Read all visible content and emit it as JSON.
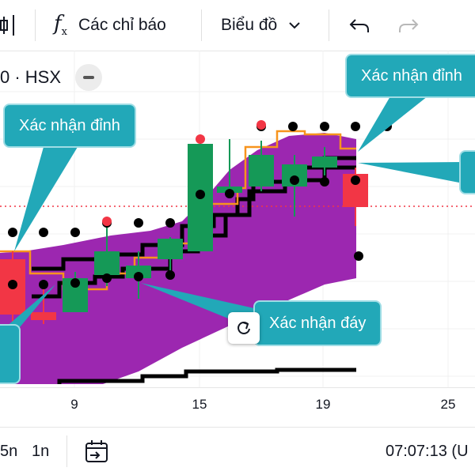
{
  "toolbar": {
    "indicators_label": "Các chỉ báo",
    "chart_type_label": "Biểu đồ"
  },
  "legend": {
    "symbol_text": "0 · HSX"
  },
  "colors": {
    "cloud": "#9c27b0",
    "up_candle": "#159957",
    "down_candle": "#f23645",
    "orange_line": "#f7941d",
    "callout": "#22a8b8",
    "dotted_line": "#f23645"
  },
  "callouts": {
    "top_left": "Xác nhận đỉnh",
    "top_right": "Xác nhận đỉnh",
    "bottom": "Xác nhận đáy"
  },
  "xaxis": {
    "ticks": [
      "9",
      "15",
      "19",
      "25"
    ]
  },
  "bottom_bar": {
    "range_5n": "5n",
    "range_1n": "1n",
    "clock": "07:07:13 (U"
  }
}
